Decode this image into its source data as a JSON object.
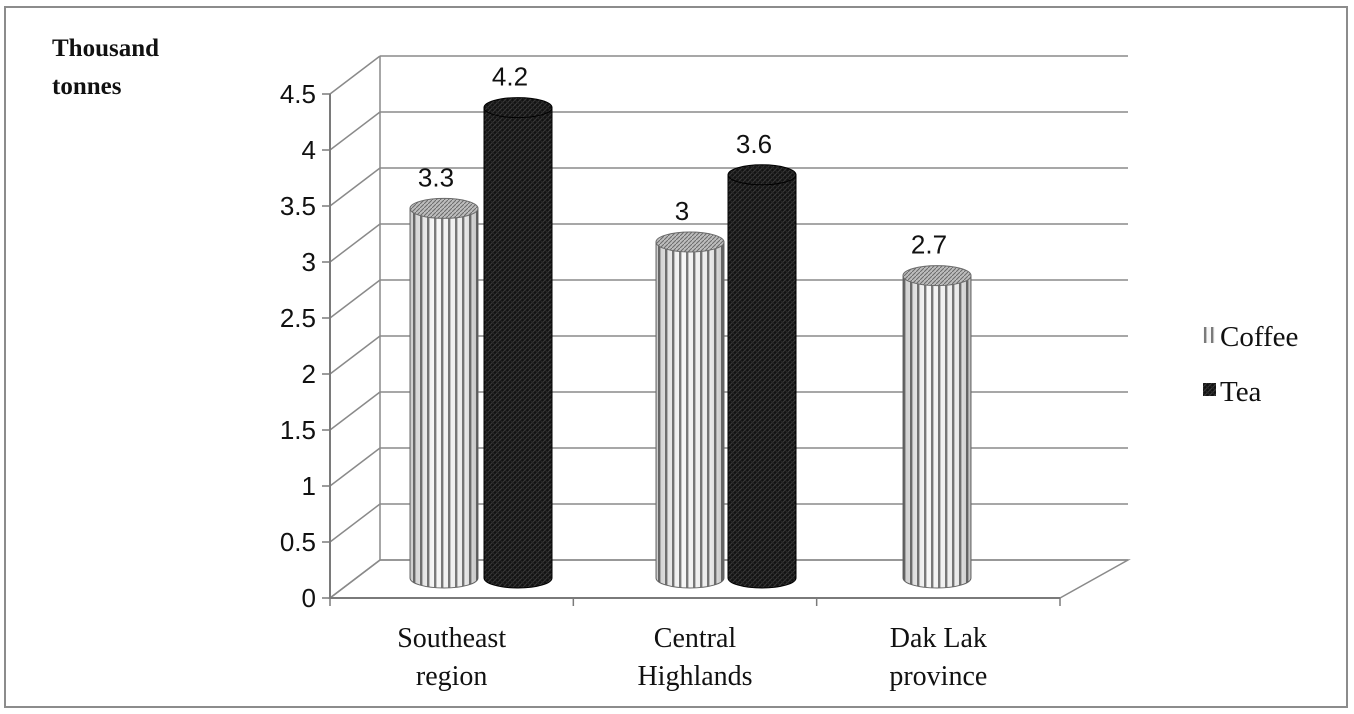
{
  "chart_data": {
    "type": "bar",
    "style": "3d-cylinder",
    "unit_label_lines": [
      "Thousand",
      "tonnes"
    ],
    "categories": [
      {
        "lines": [
          "Southeast",
          "region"
        ]
      },
      {
        "lines": [
          "Central",
          "Highlands"
        ]
      },
      {
        "lines": [
          "Dak Lak",
          "province"
        ]
      }
    ],
    "series": [
      {
        "name": "Coffee",
        "pattern": "vertical-stripes",
        "color": "#e8e8e8",
        "values": [
          3.3,
          3.0,
          2.7
        ]
      },
      {
        "name": "Tea",
        "pattern": "dark-crosshatch",
        "color": "#111111",
        "values": [
          4.2,
          3.6,
          null
        ]
      }
    ],
    "data_labels": [
      [
        "3.3",
        "3",
        "2.7"
      ],
      [
        "4.2",
        "3.6",
        ""
      ]
    ],
    "yticks": [
      "0",
      "0.5",
      "1",
      "1.5",
      "2",
      "2.5",
      "3",
      "3.5",
      "4",
      "4.5"
    ],
    "ylim": [
      0,
      4.5
    ],
    "grid": true,
    "legend_position": "right"
  }
}
